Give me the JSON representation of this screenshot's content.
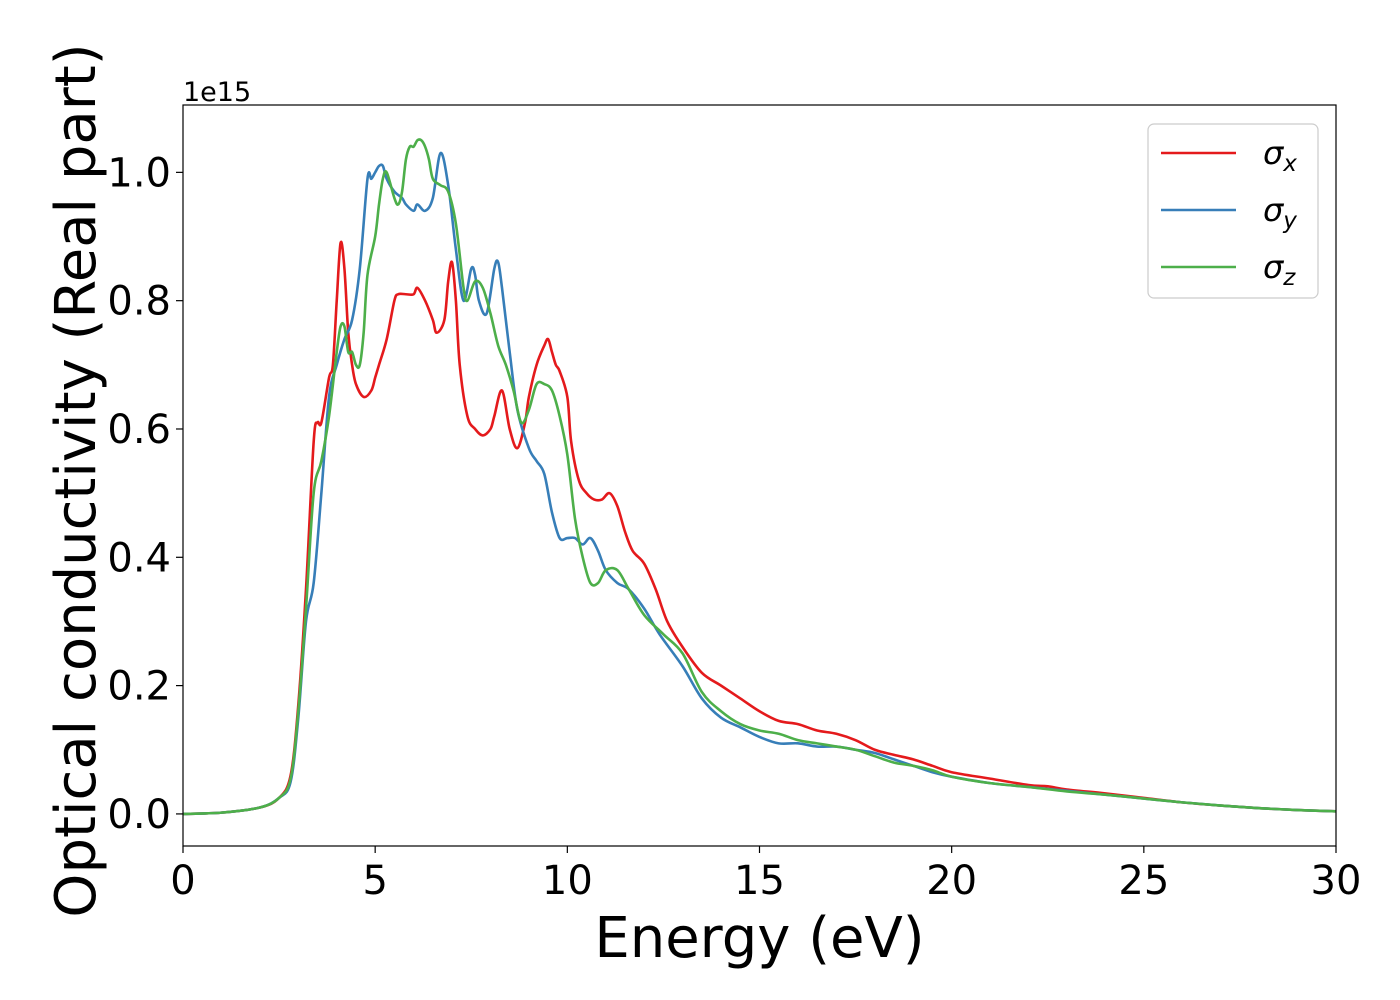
{
  "chart_data": {
    "type": "line",
    "xlabel": "Energy (eV)",
    "ylabel": "Optical conductivity (Real part)",
    "offset_text": "1e15",
    "y_scale_factor": 1000000000000000.0,
    "xlim": [
      0,
      30
    ],
    "ylim": [
      -0.05,
      1.105
    ],
    "xticks": [
      0,
      5,
      10,
      15,
      20,
      25,
      30
    ],
    "xtick_labels": [
      "0",
      "5",
      "10",
      "15",
      "20",
      "25",
      "30"
    ],
    "yticks": [
      0.0,
      0.2,
      0.4,
      0.6,
      0.8,
      1.0
    ],
    "ytick_labels": [
      "0.0",
      "0.2",
      "0.4",
      "0.6",
      "0.8",
      "1.0"
    ],
    "grid": false,
    "legend_position": "top-right",
    "series": [
      {
        "name": "σx",
        "base": "σ",
        "sub": "x",
        "color": "#e41a1c",
        "x": [
          0,
          1,
          2,
          2.5,
          2.8,
          3.0,
          3.2,
          3.4,
          3.5,
          3.6,
          3.8,
          3.9,
          4.0,
          4.1,
          4.2,
          4.3,
          4.4,
          4.5,
          4.7,
          4.9,
          5.0,
          5.1,
          5.3,
          5.5,
          5.6,
          5.8,
          6.0,
          6.1,
          6.3,
          6.5,
          6.6,
          6.8,
          6.9,
          7.0,
          7.1,
          7.2,
          7.4,
          7.6,
          7.8,
          8.0,
          8.1,
          8.3,
          8.5,
          8.7,
          8.9,
          9.0,
          9.2,
          9.4,
          9.5,
          9.6,
          9.7,
          9.8,
          10.0,
          10.1,
          10.3,
          10.5,
          10.7,
          10.9,
          11.1,
          11.3,
          11.5,
          11.7,
          12.0,
          12.3,
          12.6,
          13.0,
          13.5,
          14.0,
          14.5,
          15.0,
          15.5,
          16.0,
          16.5,
          17.0,
          17.5,
          18.0,
          18.5,
          19.0,
          19.5,
          20.0,
          21.0,
          22.0,
          22.5,
          23.0,
          24.0,
          25.0,
          26.0,
          27.0,
          28.0,
          29.0,
          30.0
        ],
        "y": [
          0.0,
          0.002,
          0.01,
          0.025,
          0.06,
          0.17,
          0.35,
          0.58,
          0.61,
          0.61,
          0.68,
          0.7,
          0.8,
          0.89,
          0.85,
          0.75,
          0.7,
          0.67,
          0.65,
          0.66,
          0.68,
          0.7,
          0.74,
          0.8,
          0.81,
          0.81,
          0.81,
          0.82,
          0.8,
          0.77,
          0.75,
          0.77,
          0.83,
          0.86,
          0.8,
          0.7,
          0.62,
          0.6,
          0.59,
          0.6,
          0.62,
          0.66,
          0.6,
          0.57,
          0.61,
          0.65,
          0.7,
          0.73,
          0.74,
          0.72,
          0.7,
          0.69,
          0.65,
          0.58,
          0.52,
          0.5,
          0.49,
          0.49,
          0.5,
          0.48,
          0.44,
          0.41,
          0.39,
          0.35,
          0.3,
          0.26,
          0.22,
          0.2,
          0.18,
          0.16,
          0.145,
          0.14,
          0.13,
          0.125,
          0.115,
          0.1,
          0.092,
          0.085,
          0.075,
          0.065,
          0.055,
          0.045,
          0.043,
          0.038,
          0.032,
          0.025,
          0.018,
          0.013,
          0.009,
          0.006,
          0.004
        ]
      },
      {
        "name": "σy",
        "base": "σ",
        "sub": "y",
        "color": "#377eb8",
        "x": [
          0,
          1,
          2,
          2.5,
          2.8,
          3.0,
          3.2,
          3.4,
          3.6,
          3.8,
          4.0,
          4.2,
          4.4,
          4.6,
          4.8,
          4.9,
          5.0,
          5.1,
          5.2,
          5.3,
          5.5,
          5.7,
          5.8,
          6.0,
          6.1,
          6.3,
          6.5,
          6.7,
          6.9,
          7.1,
          7.3,
          7.5,
          7.6,
          7.7,
          7.9,
          8.1,
          8.2,
          8.3,
          8.5,
          8.7,
          9.0,
          9.2,
          9.4,
          9.6,
          9.8,
          10.0,
          10.2,
          10.4,
          10.6,
          10.8,
          11.0,
          11.3,
          11.6,
          12.0,
          12.4,
          13.0,
          13.5,
          14.0,
          14.5,
          15.0,
          15.5,
          16.0,
          16.5,
          17.0,
          17.5,
          18.0,
          18.5,
          19.0,
          19.5,
          20.0,
          21.0,
          22.0,
          23.0,
          24.0,
          25.0,
          26.0,
          27.0,
          28.0,
          29.0,
          30.0
        ],
        "y": [
          0.0,
          0.002,
          0.01,
          0.025,
          0.05,
          0.15,
          0.3,
          0.36,
          0.5,
          0.65,
          0.7,
          0.74,
          0.77,
          0.85,
          0.99,
          0.99,
          1.0,
          1.01,
          1.01,
          0.99,
          0.97,
          0.96,
          0.95,
          0.94,
          0.95,
          0.94,
          0.96,
          1.03,
          0.98,
          0.88,
          0.8,
          0.85,
          0.84,
          0.8,
          0.78,
          0.85,
          0.86,
          0.82,
          0.72,
          0.63,
          0.57,
          0.55,
          0.53,
          0.47,
          0.43,
          0.43,
          0.43,
          0.42,
          0.43,
          0.41,
          0.38,
          0.36,
          0.35,
          0.32,
          0.28,
          0.23,
          0.18,
          0.15,
          0.135,
          0.12,
          0.11,
          0.11,
          0.105,
          0.105,
          0.1,
          0.095,
          0.085,
          0.075,
          0.065,
          0.058,
          0.048,
          0.042,
          0.036,
          0.03,
          0.024,
          0.018,
          0.013,
          0.009,
          0.006,
          0.004
        ]
      },
      {
        "name": "σz",
        "base": "σ",
        "sub": "z",
        "color": "#4daf4a",
        "x": [
          0,
          1,
          2,
          2.5,
          2.8,
          3.0,
          3.2,
          3.4,
          3.6,
          3.8,
          4.0,
          4.1,
          4.2,
          4.3,
          4.4,
          4.5,
          4.6,
          4.7,
          4.8,
          5.0,
          5.1,
          5.2,
          5.3,
          5.5,
          5.6,
          5.7,
          5.8,
          5.9,
          6.0,
          6.1,
          6.2,
          6.3,
          6.4,
          6.5,
          6.7,
          6.9,
          7.1,
          7.3,
          7.4,
          7.6,
          7.8,
          8.0,
          8.2,
          8.4,
          8.6,
          8.8,
          9.0,
          9.2,
          9.4,
          9.6,
          9.8,
          10.0,
          10.2,
          10.4,
          10.6,
          10.8,
          11.0,
          11.3,
          11.6,
          12.0,
          12.5,
          13.0,
          13.5,
          14.0,
          14.5,
          15.0,
          15.5,
          16.0,
          16.5,
          17.0,
          17.5,
          18.0,
          18.5,
          19.0,
          19.5,
          20.0,
          21.0,
          22.0,
          23.0,
          24.0,
          25.0,
          26.0,
          27.0,
          28.0,
          29.0,
          30.0
        ],
        "y": [
          0.0,
          0.002,
          0.01,
          0.025,
          0.055,
          0.16,
          0.32,
          0.5,
          0.55,
          0.62,
          0.72,
          0.76,
          0.76,
          0.72,
          0.72,
          0.7,
          0.7,
          0.75,
          0.84,
          0.9,
          0.95,
          0.99,
          1.0,
          0.96,
          0.95,
          0.97,
          1.02,
          1.04,
          1.04,
          1.05,
          1.05,
          1.04,
          1.02,
          0.99,
          0.98,
          0.97,
          0.92,
          0.82,
          0.8,
          0.83,
          0.82,
          0.78,
          0.73,
          0.7,
          0.66,
          0.61,
          0.63,
          0.67,
          0.67,
          0.66,
          0.62,
          0.56,
          0.46,
          0.4,
          0.36,
          0.36,
          0.38,
          0.38,
          0.35,
          0.31,
          0.28,
          0.25,
          0.19,
          0.16,
          0.14,
          0.13,
          0.125,
          0.115,
          0.11,
          0.105,
          0.1,
          0.09,
          0.08,
          0.075,
          0.068,
          0.058,
          0.048,
          0.042,
          0.035,
          0.03,
          0.024,
          0.018,
          0.013,
          0.009,
          0.006,
          0.004
        ]
      }
    ]
  }
}
